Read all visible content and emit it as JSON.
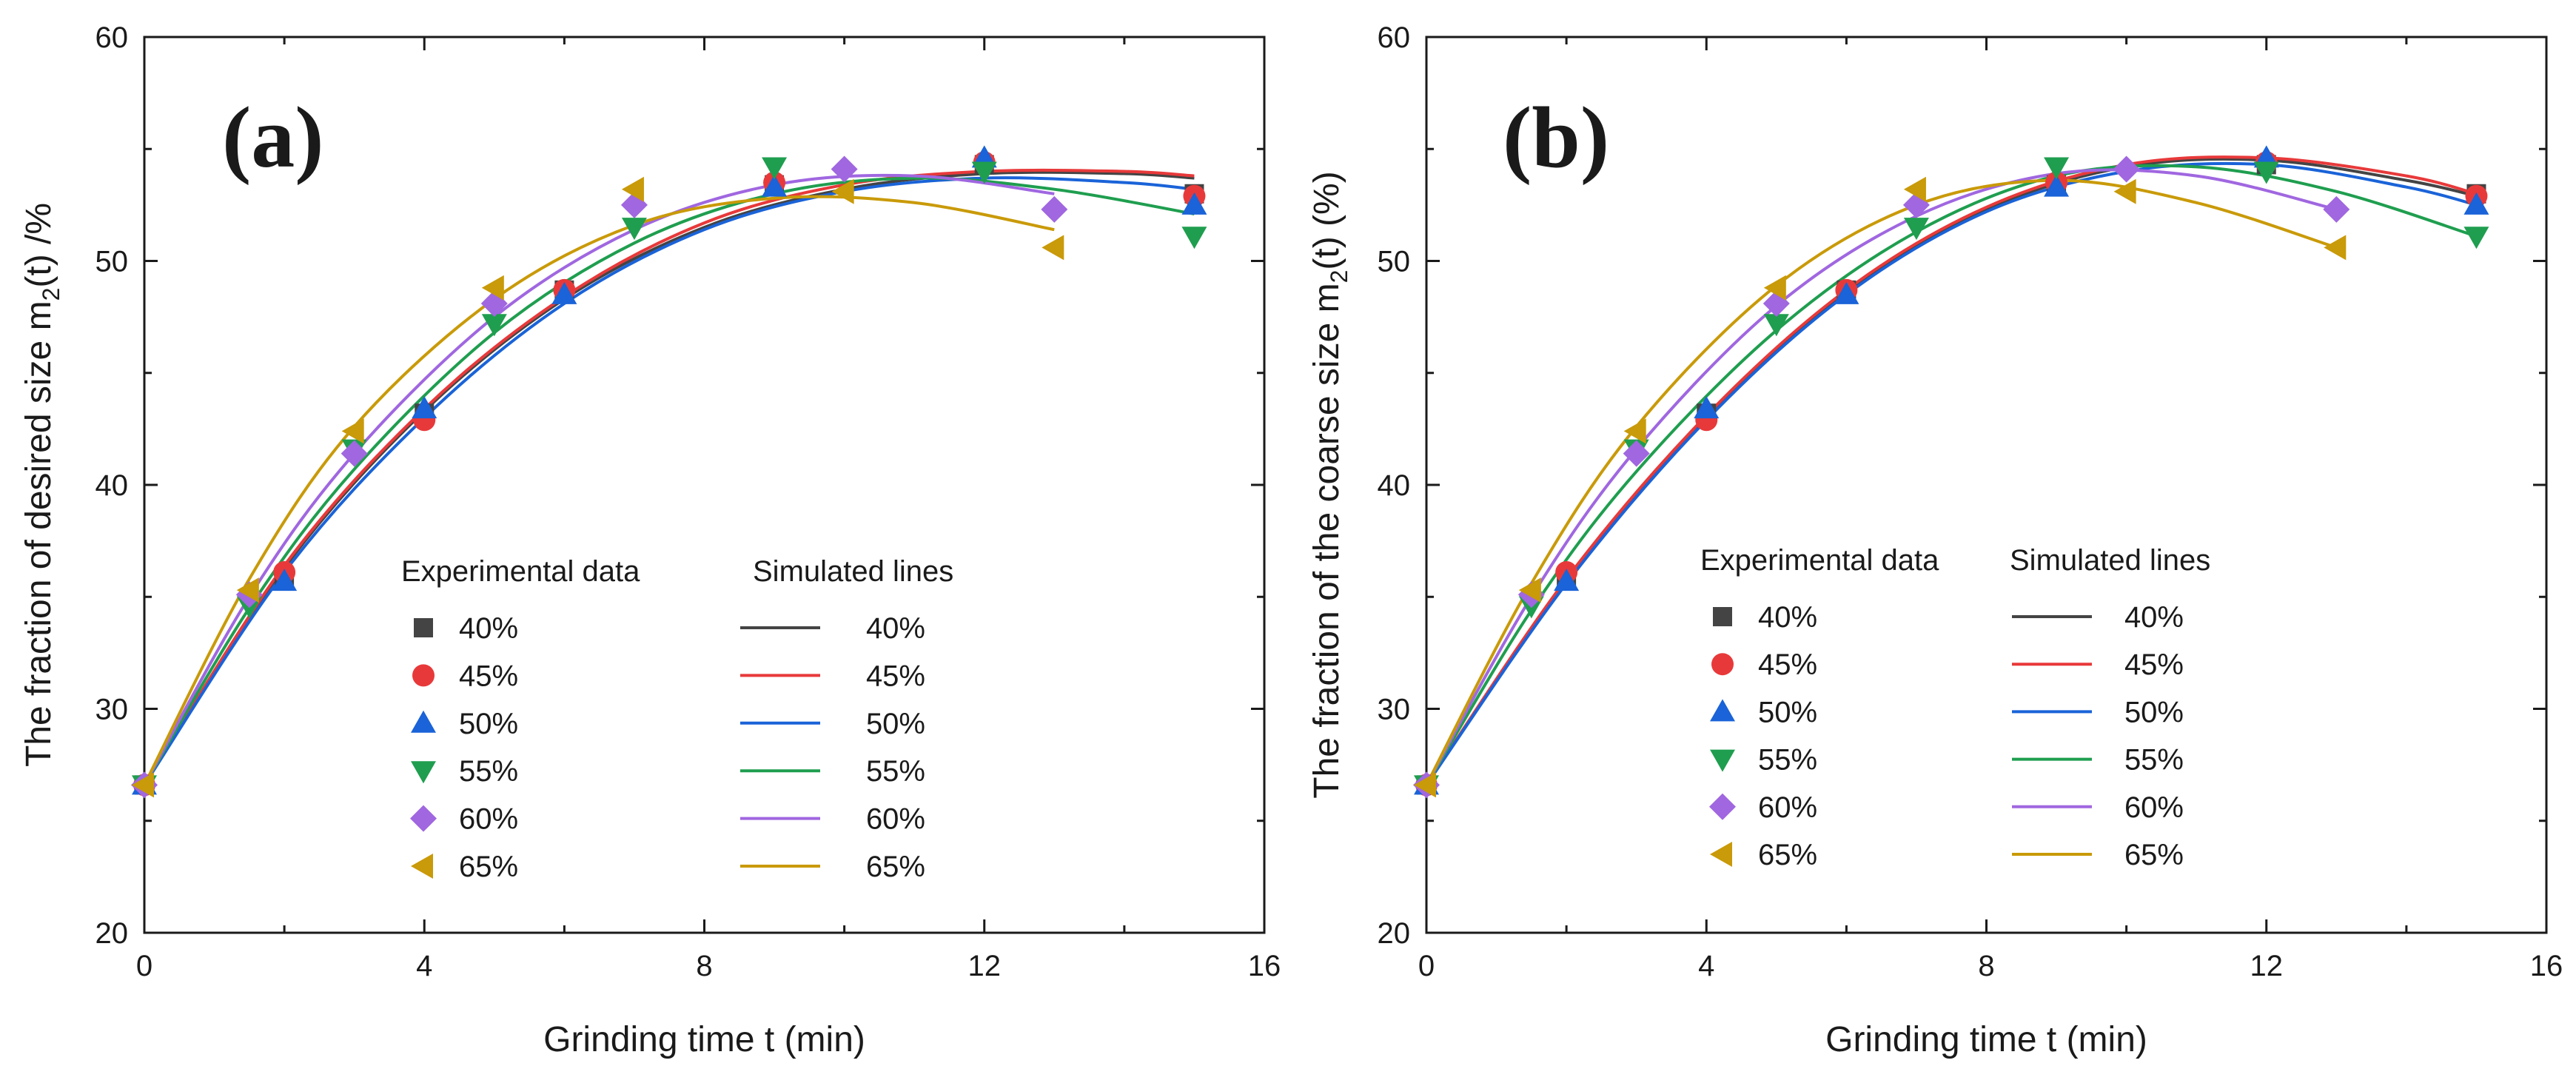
{
  "chart_data": [
    {
      "type": "scatter",
      "panel_label": "(a)",
      "xlabel": "Grinding time t (min)",
      "ylabel": "The fraction of desired size m2(t) /%",
      "ylabel_parts": {
        "pre": "The fraction of desired size m",
        "sub": "2",
        "post": "(t) /%"
      },
      "xlim": [
        0,
        16
      ],
      "ylim": [
        20,
        60
      ],
      "xticks": [
        0,
        4,
        8,
        12,
        16
      ],
      "yticks": [
        20,
        30,
        40,
        50,
        60
      ],
      "legend_headers": {
        "markers": "Experimental data",
        "lines": "Simulated lines"
      },
      "legend_position": "center-right",
      "series": [
        {
          "name": "40%",
          "color": "#444444",
          "marker": "square",
          "points": [
            [
              0,
              26.6
            ],
            [
              2,
              35.9
            ],
            [
              4,
              43.2
            ],
            [
              6,
              48.7
            ],
            [
              9,
              53.4
            ],
            [
              12,
              54.3
            ],
            [
              15,
              53.0
            ]
          ],
          "line": [
            [
              0,
              26.6
            ],
            [
              2,
              36.3
            ],
            [
              4,
              43.3
            ],
            [
              6,
              48.3
            ],
            [
              8,
              51.5
            ],
            [
              10,
              53.2
            ],
            [
              12,
              53.9
            ],
            [
              14,
              53.9
            ],
            [
              15,
              53.7
            ]
          ]
        },
        {
          "name": "45%",
          "color": "#e8393a",
          "marker": "circle",
          "points": [
            [
              0,
              26.6
            ],
            [
              2,
              36.1
            ],
            [
              4,
              42.9
            ],
            [
              6,
              48.7
            ],
            [
              9,
              53.5
            ],
            [
              12,
              54.4
            ],
            [
              15,
              52.9
            ]
          ],
          "line": [
            [
              0,
              26.6
            ],
            [
              2,
              36.4
            ],
            [
              4,
              43.4
            ],
            [
              6,
              48.4
            ],
            [
              8,
              51.7
            ],
            [
              10,
              53.4
            ],
            [
              12,
              54.0
            ],
            [
              14,
              54.0
            ],
            [
              15,
              53.8
            ]
          ]
        },
        {
          "name": "50%",
          "color": "#1a63d8",
          "marker": "triangle-up",
          "points": [
            [
              0,
              26.6
            ],
            [
              2,
              35.7
            ],
            [
              4,
              43.4
            ],
            [
              6,
              48.5
            ],
            [
              9,
              53.3
            ],
            [
              12,
              54.6
            ],
            [
              15,
              52.5
            ]
          ],
          "line": [
            [
              0,
              26.6
            ],
            [
              2,
              36.1
            ],
            [
              4,
              43.0
            ],
            [
              6,
              48.1
            ],
            [
              8,
              51.4
            ],
            [
              10,
              53.1
            ],
            [
              12,
              53.7
            ],
            [
              14,
              53.5
            ],
            [
              15,
              53.2
            ]
          ]
        },
        {
          "name": "55%",
          "color": "#1f9e4f",
          "marker": "triangle-down",
          "points": [
            [
              0,
              26.6
            ],
            [
              1.5,
              34.6
            ],
            [
              3,
              41.6
            ],
            [
              5,
              47.2
            ],
            [
              7,
              51.5
            ],
            [
              9,
              54.2
            ],
            [
              12,
              54.0
            ],
            [
              15,
              51.1
            ]
          ],
          "line": [
            [
              0,
              26.6
            ],
            [
              1.5,
              34.5
            ],
            [
              3,
              40.7
            ],
            [
              5,
              46.8
            ],
            [
              7,
              50.8
            ],
            [
              9,
              53.0
            ],
            [
              11,
              53.7
            ],
            [
              13,
              53.2
            ],
            [
              15,
              52.1
            ]
          ]
        },
        {
          "name": "60%",
          "color": "#a067e0",
          "marker": "diamond",
          "points": [
            [
              0,
              26.6
            ],
            [
              1.5,
              35.1
            ],
            [
              3,
              41.4
            ],
            [
              5,
              48.1
            ],
            [
              7,
              52.5
            ],
            [
              10,
              54.1
            ],
            [
              13,
              52.3
            ]
          ],
          "line": [
            [
              0,
              26.6
            ],
            [
              1.5,
              35.0
            ],
            [
              3,
              41.4
            ],
            [
              5,
              47.5
            ],
            [
              7,
              51.4
            ],
            [
              9,
              53.4
            ],
            [
              11,
              53.8
            ],
            [
              13,
              53.0
            ]
          ]
        },
        {
          "name": "65%",
          "color": "#c99a09",
          "marker": "triangle-left",
          "points": [
            [
              0,
              26.6
            ],
            [
              1.5,
              35.3
            ],
            [
              3,
              42.4
            ],
            [
              5,
              48.8
            ],
            [
              7,
              53.2
            ],
            [
              10,
              53.1
            ],
            [
              13,
              50.6
            ]
          ],
          "line": [
            [
              0,
              26.6
            ],
            [
              1.5,
              35.8
            ],
            [
              3,
              42.6
            ],
            [
              5,
              48.3
            ],
            [
              7,
              51.6
            ],
            [
              9,
              52.8
            ],
            [
              11,
              52.6
            ],
            [
              13,
              51.4
            ]
          ]
        }
      ]
    },
    {
      "type": "scatter",
      "panel_label": "(b)",
      "xlabel": "Grinding time t (min)",
      "ylabel": "The fraction of the coarse size m2(t) (%)",
      "ylabel_parts": {
        "pre": "The fraction of the coarse size m",
        "sub": "2",
        "post": "(t) (%)"
      },
      "xlim": [
        0,
        16
      ],
      "ylim": [
        20,
        60
      ],
      "xticks": [
        0,
        4,
        8,
        12,
        16
      ],
      "yticks": [
        20,
        30,
        40,
        50,
        60
      ],
      "legend_headers": {
        "markers": "Experimental data",
        "lines": "Simulated lines"
      },
      "legend_position": "center-right",
      "series": [
        {
          "name": "40%",
          "color": "#444444",
          "marker": "square",
          "points": [
            [
              0,
              26.6
            ],
            [
              2,
              35.9
            ],
            [
              4,
              43.2
            ],
            [
              6,
              48.7
            ],
            [
              9,
              53.4
            ],
            [
              12,
              54.3
            ],
            [
              15,
              53.0
            ]
          ],
          "line": [
            [
              0,
              26.6
            ],
            [
              2,
              35.7
            ],
            [
              4,
              43.0
            ],
            [
              6,
              48.6
            ],
            [
              8,
              52.3
            ],
            [
              10,
              54.2
            ],
            [
              12,
              54.5
            ],
            [
              14,
              53.6
            ],
            [
              15,
              52.9
            ]
          ]
        },
        {
          "name": "45%",
          "color": "#e8393a",
          "marker": "circle",
          "points": [
            [
              0,
              26.6
            ],
            [
              2,
              36.1
            ],
            [
              4,
              42.9
            ],
            [
              6,
              48.7
            ],
            [
              9,
              53.5
            ],
            [
              12,
              54.4
            ],
            [
              15,
              52.9
            ]
          ],
          "line": [
            [
              0,
              26.6
            ],
            [
              2,
              35.8
            ],
            [
              4,
              43.1
            ],
            [
              6,
              48.7
            ],
            [
              8,
              52.4
            ],
            [
              10,
              54.3
            ],
            [
              12,
              54.6
            ],
            [
              14,
              53.8
            ],
            [
              15,
              53.0
            ]
          ]
        },
        {
          "name": "50%",
          "color": "#1a63d8",
          "marker": "triangle-up",
          "points": [
            [
              0,
              26.6
            ],
            [
              2,
              35.7
            ],
            [
              4,
              43.4
            ],
            [
              6,
              48.5
            ],
            [
              9,
              53.3
            ],
            [
              12,
              54.6
            ],
            [
              15,
              52.5
            ]
          ],
          "line": [
            [
              0,
              26.6
            ],
            [
              2,
              35.6
            ],
            [
              4,
              42.9
            ],
            [
              6,
              48.5
            ],
            [
              8,
              52.2
            ],
            [
              10,
              54.0
            ],
            [
              12,
              54.3
            ],
            [
              14,
              53.3
            ],
            [
              15,
              52.5
            ]
          ]
        },
        {
          "name": "55%",
          "color": "#1f9e4f",
          "marker": "triangle-down",
          "points": [
            [
              0,
              26.6
            ],
            [
              1.5,
              34.6
            ],
            [
              3,
              41.6
            ],
            [
              5,
              47.2
            ],
            [
              7,
              51.5
            ],
            [
              9,
              54.2
            ],
            [
              12,
              54.0
            ],
            [
              15,
              51.1
            ]
          ],
          "line": [
            [
              0,
              26.6
            ],
            [
              1.5,
              34.4
            ],
            [
              3,
              40.6
            ],
            [
              5,
              46.9
            ],
            [
              7,
              51.3
            ],
            [
              9,
              53.8
            ],
            [
              11,
              54.2
            ],
            [
              13,
              53.1
            ],
            [
              15,
              51.1
            ]
          ]
        },
        {
          "name": "60%",
          "color": "#a067e0",
          "marker": "diamond",
          "points": [
            [
              0,
              26.6
            ],
            [
              1.5,
              35.1
            ],
            [
              3,
              41.4
            ],
            [
              5,
              48.1
            ],
            [
              7,
              52.5
            ],
            [
              10,
              54.1
            ],
            [
              13,
              52.3
            ]
          ],
          "line": [
            [
              0,
              26.6
            ],
            [
              1.5,
              35.0
            ],
            [
              3,
              41.6
            ],
            [
              5,
              48.0
            ],
            [
              7,
              52.0
            ],
            [
              9,
              53.9
            ],
            [
              11,
              53.8
            ],
            [
              13,
              52.3
            ]
          ]
        },
        {
          "name": "65%",
          "color": "#c99a09",
          "marker": "triangle-left",
          "points": [
            [
              0,
              26.6
            ],
            [
              1.5,
              35.3
            ],
            [
              3,
              42.4
            ],
            [
              5,
              48.8
            ],
            [
              7,
              53.2
            ],
            [
              10,
              53.1
            ],
            [
              13,
              50.6
            ]
          ],
          "line": [
            [
              0,
              26.6
            ],
            [
              1.5,
              35.6
            ],
            [
              3,
              42.6
            ],
            [
              5,
              48.9
            ],
            [
              7,
              52.5
            ],
            [
              9,
              53.6
            ],
            [
              11,
              52.6
            ],
            [
              13,
              50.6
            ]
          ]
        }
      ]
    }
  ]
}
